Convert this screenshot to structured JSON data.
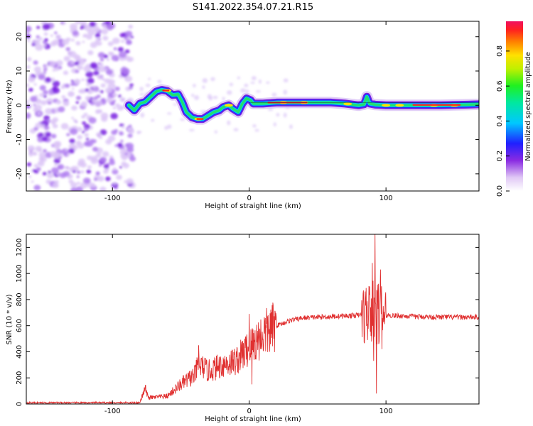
{
  "title": "S141.2022.354.07.21.R15",
  "spectrogram": {
    "type": "heatmap",
    "xlabel": "Height of straight line (km)",
    "ylabel": "Frequency (Hz)",
    "xlim": [
      -163,
      168
    ],
    "ylim": [
      -25,
      24.5
    ],
    "x_ticks": [
      -100,
      0,
      100
    ],
    "y_ticks": [
      -20,
      -10,
      0,
      10,
      20
    ],
    "colorbar": {
      "label": "Normalized spectral amplitude",
      "ticks": [
        0.0,
        0.2,
        0.4,
        0.6,
        0.8
      ],
      "range": [
        0,
        0.97
      ]
    },
    "noise_region_x": [
      -163,
      -88
    ],
    "ridge": [
      [
        -88,
        0
      ],
      [
        -84,
        -1.5
      ],
      [
        -80,
        0.5
      ],
      [
        -76,
        1
      ],
      [
        -72,
        2.5
      ],
      [
        -68,
        4
      ],
      [
        -64,
        4.5
      ],
      [
        -60,
        4.2
      ],
      [
        -56,
        3
      ],
      [
        -52,
        3.2
      ],
      [
        -49,
        1
      ],
      [
        -46,
        -2
      ],
      [
        -42,
        -3.5
      ],
      [
        -38,
        -4
      ],
      [
        -34,
        -4
      ],
      [
        -30,
        -3
      ],
      [
        -26,
        -2
      ],
      [
        -22,
        -1.5
      ],
      [
        -19,
        -0.5
      ],
      [
        -15,
        0
      ],
      [
        -12,
        -1
      ],
      [
        -8,
        -2
      ],
      [
        -5,
        0.5
      ],
      [
        -2,
        2
      ],
      [
        1,
        1.5
      ],
      [
        3,
        0.5
      ],
      [
        10,
        0.5
      ],
      [
        20,
        0.8
      ],
      [
        40,
        0.8
      ],
      [
        60,
        0.8
      ],
      [
        70,
        0.5
      ],
      [
        76,
        0.2
      ],
      [
        80,
        0
      ],
      [
        84,
        0.3
      ],
      [
        86,
        2.5
      ],
      [
        88,
        0.5
      ],
      [
        92,
        0.2
      ],
      [
        100,
        0
      ],
      [
        120,
        0
      ],
      [
        140,
        0
      ],
      [
        160,
        0.2
      ],
      [
        168,
        0.3
      ]
    ]
  },
  "snr": {
    "type": "line",
    "xlabel": "Height of straight line (km)",
    "ylabel": "SNR (10 * v/v)",
    "xlim": [
      -163,
      168
    ],
    "ylim": [
      0,
      1300
    ],
    "x_ticks": [
      -100,
      0,
      100
    ],
    "y_ticks": [
      0,
      200,
      400,
      600,
      800,
      1000,
      1200
    ],
    "color": "#e03030",
    "envelope": [
      [
        -163,
        10
      ],
      [
        -80,
        10
      ],
      [
        -76,
        120
      ],
      [
        -74,
        50
      ],
      [
        -70,
        50
      ],
      [
        -60,
        60
      ],
      [
        -50,
        150
      ],
      [
        -40,
        220
      ],
      [
        -37,
        300
      ],
      [
        -30,
        250
      ],
      [
        -20,
        300
      ],
      [
        -10,
        330
      ],
      [
        -5,
        380
      ],
      [
        0,
        430
      ],
      [
        10,
        530
      ],
      [
        20,
        600
      ],
      [
        30,
        640
      ],
      [
        40,
        660
      ],
      [
        60,
        670
      ],
      [
        70,
        675
      ],
      [
        80,
        680
      ],
      [
        85,
        690
      ],
      [
        90,
        700
      ],
      [
        92,
        700
      ],
      [
        96,
        690
      ],
      [
        100,
        680
      ],
      [
        120,
        670
      ],
      [
        140,
        665
      ],
      [
        168,
        665
      ]
    ],
    "spikes": [
      [
        -76,
        140
      ],
      [
        -37,
        450
      ],
      [
        -33,
        230
      ],
      [
        0,
        690
      ],
      [
        2,
        150
      ],
      [
        6,
        560
      ],
      [
        88,
        900
      ],
      [
        89,
        520
      ],
      [
        90,
        1080
      ],
      [
        91,
        330
      ],
      [
        92,
        1300
      ],
      [
        93,
        80
      ],
      [
        94,
        850
      ],
      [
        95,
        480
      ],
      [
        96,
        1030
      ],
      [
        97,
        420
      ],
      [
        98,
        750
      ]
    ]
  }
}
